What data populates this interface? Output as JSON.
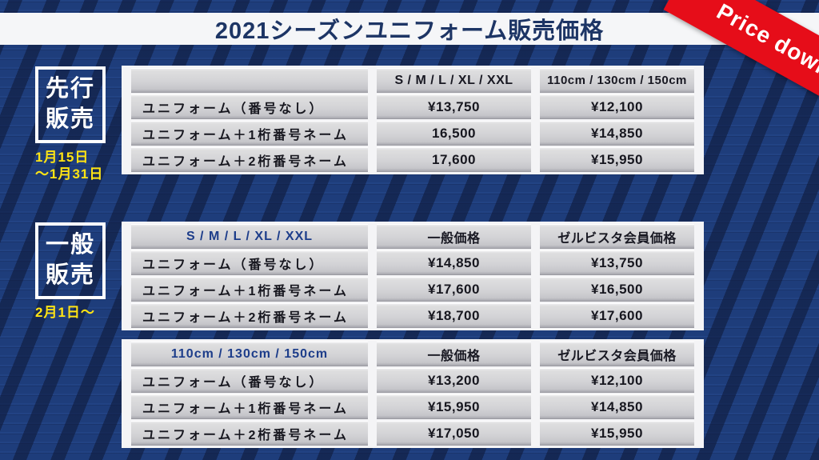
{
  "title": "2021シーズンユニフォーム販売価格",
  "ribbon": {
    "label": "Price down"
  },
  "colors": {
    "background_navy": "#1e3d7b",
    "background_pattern_dark": "#14224a",
    "title_navy": "#1d3565",
    "ribbon_red": "#e60d19",
    "date_yellow": "#ffe414",
    "header_blue": "#1d3d8a",
    "cell_gray": "#d3d3d6"
  },
  "advance": {
    "badge_lines": [
      "先行",
      "販売"
    ],
    "date_lines": [
      "1月15日",
      "〜1月31日"
    ],
    "table": {
      "headers": [
        "",
        "S / M / L / XL / XXL",
        "110cm / 130cm / 150cm"
      ],
      "rows": [
        [
          "ユニフォーム（番号なし）",
          "¥13,750",
          "¥12,100"
        ],
        [
          "ユニフォーム＋1桁番号ネーム",
          "16,500",
          "¥14,850"
        ],
        [
          "ユニフォーム＋2桁番号ネーム",
          "17,600",
          "¥15,950"
        ]
      ]
    }
  },
  "general": {
    "badge_lines": [
      "一般",
      "販売"
    ],
    "date_lines": [
      "2月1日〜"
    ],
    "adult_table": {
      "headers": [
        "S / M / L / XL / XXL",
        "一般価格",
        "ゼルビスタ会員価格"
      ],
      "rows": [
        [
          "ユニフォーム（番号なし）",
          "¥14,850",
          "¥13,750"
        ],
        [
          "ユニフォーム＋1桁番号ネーム",
          "¥17,600",
          "¥16,500"
        ],
        [
          "ユニフォーム＋2桁番号ネーム",
          "¥18,700",
          "¥17,600"
        ]
      ]
    },
    "kids_table": {
      "headers": [
        "110cm / 130cm / 150cm",
        "一般価格",
        "ゼルビスタ会員価格"
      ],
      "rows": [
        [
          "ユニフォーム（番号なし）",
          "¥13,200",
          "¥12,100"
        ],
        [
          "ユニフォーム＋1桁番号ネーム",
          "¥15,950",
          "¥14,850"
        ],
        [
          "ユニフォーム＋2桁番号ネーム",
          "¥17,050",
          "¥15,950"
        ]
      ]
    }
  }
}
